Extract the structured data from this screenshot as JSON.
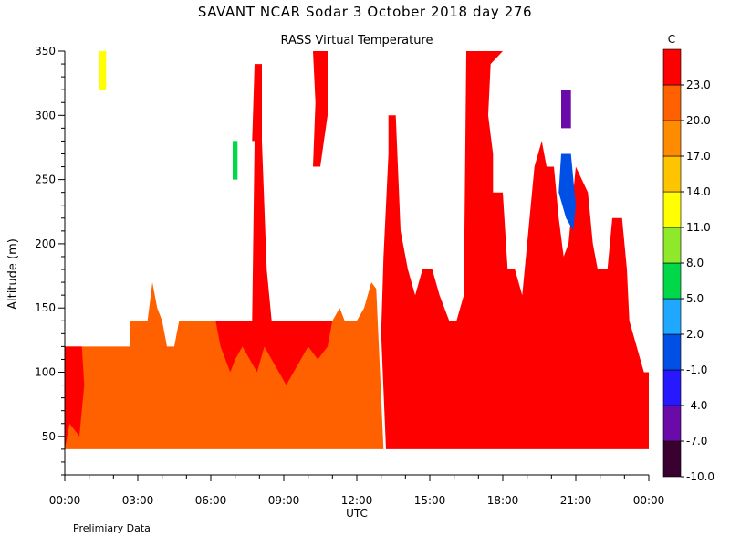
{
  "chart_data": {
    "type": "heatmap",
    "title": "SAVANT  NCAR Sodar   3 October 2018  day 276",
    "subtitle": "RASS Virtual Temperature",
    "xlabel": "UTC",
    "ylabel": "Altitude (m)",
    "note": "Prelimiary Data",
    "colorbar_unit": "C",
    "x_ticks": [
      "00:00",
      "03:00",
      "06:00",
      "09:00",
      "12:00",
      "15:00",
      "18:00",
      "21:00",
      "00:00"
    ],
    "x_range_hours": [
      0,
      24
    ],
    "y_ticks": [
      50,
      100,
      150,
      200,
      250,
      300,
      350
    ],
    "ylim": [
      20,
      350
    ],
    "grid": false,
    "colorbar_labels": [
      "23.0",
      "20.0",
      "17.0",
      "14.0",
      "11.0",
      "8.0",
      "5.0",
      "2.0",
      "-1.0",
      "-4.0",
      "-7.0",
      "-10.0"
    ],
    "color_levels": [
      {
        "min": -10,
        "max": -7,
        "color": "#3a0030"
      },
      {
        "min": -7,
        "max": -4,
        "color": "#6a0aa8"
      },
      {
        "min": -4,
        "max": -1,
        "color": "#2818ff"
      },
      {
        "min": -1,
        "max": 2,
        "color": "#0050e6"
      },
      {
        "min": 2,
        "max": 5,
        "color": "#1ea8ff"
      },
      {
        "min": 5,
        "max": 8,
        "color": "#00d84a"
      },
      {
        "min": 8,
        "max": 11,
        "color": "#8fe82a"
      },
      {
        "min": 11,
        "max": 14,
        "color": "#ffff00"
      },
      {
        "min": 14,
        "max": 17,
        "color": "#ffc400"
      },
      {
        "min": 17,
        "max": 20,
        "color": "#ff8c00"
      },
      {
        "min": 20,
        "max": 23,
        "color": "#ff6000"
      },
      {
        "min": 23,
        "max": 26,
        "color": "#ff0000"
      }
    ],
    "fields": [
      {
        "name": "warm-layer",
        "color": "#ff6000",
        "level_range": [
          20,
          23
        ],
        "points": [
          [
            0,
            40
          ],
          [
            0,
            120
          ],
          [
            2.7,
            120
          ],
          [
            2.7,
            140
          ],
          [
            3.4,
            140
          ],
          [
            3.6,
            170
          ],
          [
            3.8,
            150
          ],
          [
            4.0,
            140
          ],
          [
            4.2,
            120
          ],
          [
            4.5,
            120
          ],
          [
            4.7,
            140
          ],
          [
            6.0,
            140
          ],
          [
            6.2,
            140
          ],
          [
            6.4,
            140
          ],
          [
            7.3,
            140
          ],
          [
            8.0,
            140
          ],
          [
            8.5,
            140
          ],
          [
            9.0,
            140
          ],
          [
            10.5,
            140
          ],
          [
            11.0,
            140
          ],
          [
            11.3,
            150
          ],
          [
            11.5,
            140
          ],
          [
            12.0,
            140
          ],
          [
            12.3,
            150
          ],
          [
            12.6,
            170
          ],
          [
            12.8,
            165
          ],
          [
            13.1,
            40
          ]
        ]
      },
      {
        "name": "hot-region-afternoon",
        "color": "#ff0000",
        "level_range": [
          23,
          26
        ],
        "points": [
          [
            13.2,
            40
          ],
          [
            13.0,
            130
          ],
          [
            13.1,
            190
          ],
          [
            13.3,
            270
          ],
          [
            13.3,
            300
          ],
          [
            13.6,
            300
          ],
          [
            13.8,
            210
          ],
          [
            14.1,
            180
          ],
          [
            14.4,
            160
          ],
          [
            14.7,
            180
          ],
          [
            15.1,
            180
          ],
          [
            15.4,
            160
          ],
          [
            15.6,
            150
          ],
          [
            15.8,
            140
          ],
          [
            16.1,
            140
          ],
          [
            16.4,
            160
          ],
          [
            16.5,
            350
          ],
          [
            18.0,
            350
          ],
          [
            17.5,
            340
          ],
          [
            17.4,
            300
          ],
          [
            17.6,
            270
          ],
          [
            17.6,
            240
          ],
          [
            18.0,
            240
          ],
          [
            18.2,
            180
          ],
          [
            18.5,
            180
          ],
          [
            18.8,
            160
          ],
          [
            18.9,
            180
          ],
          [
            19.0,
            200
          ],
          [
            19.3,
            260
          ],
          [
            19.6,
            280
          ],
          [
            19.8,
            260
          ],
          [
            20.1,
            260
          ],
          [
            20.3,
            220
          ],
          [
            20.5,
            190
          ],
          [
            20.7,
            200
          ],
          [
            21.0,
            260
          ],
          [
            21.5,
            240
          ],
          [
            21.7,
            200
          ],
          [
            21.9,
            180
          ],
          [
            22.3,
            180
          ],
          [
            22.5,
            220
          ],
          [
            22.9,
            220
          ],
          [
            23.1,
            180
          ],
          [
            23.2,
            140
          ],
          [
            23.5,
            120
          ],
          [
            23.8,
            100
          ],
          [
            24.0,
            100
          ],
          [
            24.0,
            40
          ]
        ]
      },
      {
        "name": "hot-column-early",
        "color": "#ff0000",
        "level_range": [
          23,
          26
        ],
        "points": [
          [
            0,
            40
          ],
          [
            0,
            120
          ],
          [
            0.7,
            120
          ],
          [
            0.8,
            90
          ],
          [
            0.6,
            50
          ],
          [
            0.2,
            60
          ],
          [
            0,
            40
          ]
        ]
      },
      {
        "name": "hot-region-morning",
        "color": "#ff0000",
        "level_range": [
          23,
          26
        ],
        "points": [
          [
            6.2,
            140
          ],
          [
            6.4,
            120
          ],
          [
            6.6,
            110
          ],
          [
            6.8,
            100
          ],
          [
            7.0,
            110
          ],
          [
            7.3,
            120
          ],
          [
            7.6,
            110
          ],
          [
            7.9,
            100
          ],
          [
            8.2,
            120
          ],
          [
            8.5,
            110
          ],
          [
            8.8,
            100
          ],
          [
            9.1,
            90
          ],
          [
            9.4,
            100
          ],
          [
            9.7,
            110
          ],
          [
            10.0,
            120
          ],
          [
            10.4,
            110
          ],
          [
            10.8,
            120
          ],
          [
            11.0,
            140
          ],
          [
            10.5,
            140
          ],
          [
            9.0,
            140
          ],
          [
            8.5,
            140
          ],
          [
            8.0,
            140
          ]
        ]
      },
      {
        "name": "hot-column-0800",
        "color": "#ff0000",
        "level_range": [
          23,
          26
        ],
        "points": [
          [
            7.7,
            140
          ],
          [
            7.8,
            280
          ],
          [
            7.7,
            280
          ],
          [
            7.8,
            340
          ],
          [
            8.1,
            340
          ],
          [
            8.1,
            280
          ],
          [
            8.3,
            180
          ],
          [
            8.5,
            140
          ]
        ]
      },
      {
        "name": "hot-column-1030",
        "color": "#ff0000",
        "level_range": [
          23,
          26
        ],
        "points": [
          [
            10.2,
            350
          ],
          [
            10.8,
            350
          ],
          [
            10.8,
            300
          ],
          [
            10.5,
            260
          ],
          [
            10.2,
            260
          ],
          [
            10.3,
            310
          ]
        ]
      },
      {
        "name": "yellow-patch-0130",
        "color": "#ffff00",
        "level_range": [
          11,
          14
        ],
        "points": [
          [
            1.4,
            320
          ],
          [
            1.7,
            320
          ],
          [
            1.7,
            350
          ],
          [
            1.4,
            350
          ]
        ]
      },
      {
        "name": "green-patch-0700",
        "color": "#00d84a",
        "level_range": [
          5,
          8
        ],
        "points": [
          [
            6.9,
            250
          ],
          [
            7.1,
            250
          ],
          [
            7.1,
            280
          ],
          [
            6.9,
            280
          ]
        ]
      },
      {
        "name": "blue-patch-2045",
        "color": "#0050e6",
        "level_range": [
          -1,
          2
        ],
        "points": [
          [
            20.4,
            270
          ],
          [
            20.8,
            270
          ],
          [
            21.0,
            230
          ],
          [
            20.9,
            210
          ],
          [
            20.6,
            220
          ],
          [
            20.3,
            240
          ]
        ]
      },
      {
        "name": "violet-patch-2045",
        "color": "#6a0aa8",
        "level_range": [
          -7,
          -4
        ],
        "points": [
          [
            20.4,
            320
          ],
          [
            20.8,
            320
          ],
          [
            20.8,
            290
          ],
          [
            20.4,
            290
          ]
        ]
      }
    ]
  }
}
